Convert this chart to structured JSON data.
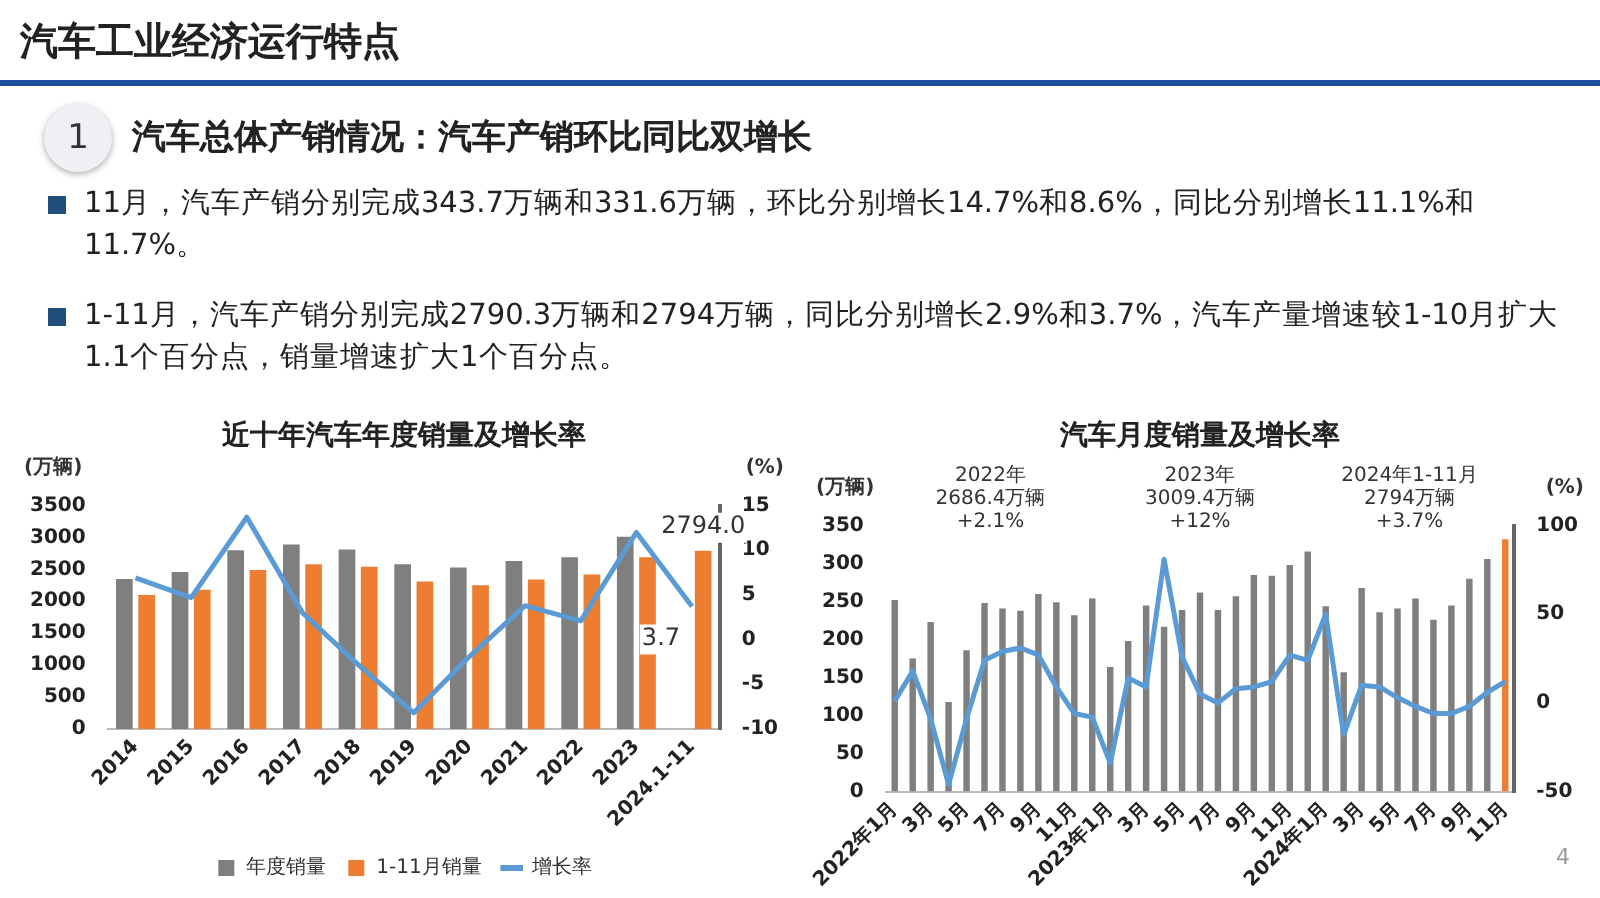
{
  "chart_data": [
    {
      "type": "other",
      "title": "汽车工业经济运行特点",
      "subtitle": "汽车总体产销情况：汽车产销环比同比双增长",
      "annotations": [
        "1",
        "11月，汽车产销分别完成343.7万辆和331.6万辆，环比分别增长14.7%和8.6%，同比分别增长11.1%和11.7%。",
        "1-11月，汽车产销分别完成2790.3万辆和2794万辆，同比分别增长2.9%和3.7%，汽车产量增速较1-10月扩大1.1个百分点，销量增速扩大1个百分点。",
        "4"
      ]
    },
    {
      "type": "bar",
      "title": "近十年汽车年度销量及增长率",
      "ylabel": "(万辆)",
      "y2label": "(%)",
      "categories": [
        "2014",
        "2015",
        "2016",
        "2017",
        "2018",
        "2019",
        "2020",
        "2021",
        "2022",
        "2023",
        "2024.1-11"
      ],
      "series": [
        {
          "name": "年度销量",
          "type": "bar",
          "color": "#7f7f7f",
          "values": [
            2350,
            2460,
            2800,
            2890,
            2810,
            2580,
            2530,
            2630,
            2690,
            3010,
            null
          ]
        },
        {
          "name": "1-11月销量",
          "type": "bar",
          "color": "#ed7d31",
          "values": [
            2100,
            2180,
            2490,
            2580,
            2540,
            2310,
            2250,
            2340,
            2420,
            2690,
            2794
          ],
          "value_labels": [
            null,
            null,
            null,
            null,
            null,
            null,
            null,
            null,
            null,
            null,
            "2794.0"
          ]
        },
        {
          "name": "增长率",
          "type": "line",
          "axis": "y2",
          "color": "#5b9bd5",
          "values": [
            6.9,
            4.7,
            13.7,
            3.0,
            -2.8,
            -8.2,
            -1.9,
            3.8,
            2.1,
            12.0,
            3.7
          ],
          "value_labels": [
            null,
            null,
            null,
            null,
            null,
            null,
            null,
            null,
            null,
            null,
            "3.7"
          ]
        }
      ],
      "ylim": [
        0,
        3500
      ],
      "yticks": [
        0,
        500,
        1000,
        1500,
        2000,
        2500,
        3000,
        3500
      ],
      "y2lim": [
        -10,
        15
      ],
      "y2ticks": [
        -10,
        -5,
        0,
        5,
        10,
        15
      ],
      "legend": "bottom",
      "marker": "none",
      "line_style": "solid"
    },
    {
      "type": "bar",
      "title": "汽车月度销量及增长率",
      "ylabel": "(万辆)",
      "y2label": "(%)",
      "categories": [
        "2022年1月",
        null,
        "3月",
        null,
        "5月",
        null,
        "7月",
        null,
        "9月",
        null,
        "11月",
        null,
        "2023年1月",
        null,
        "3月",
        null,
        "5月",
        null,
        "7月",
        null,
        "9月",
        null,
        "11月",
        null,
        "2024年1月",
        null,
        "3月",
        null,
        "5月",
        null,
        "7月",
        null,
        "9月",
        null,
        "11月"
      ],
      "series": [
        {
          "type": "bar",
          "colors": [
            "#7f7f7f",
            "#7f7f7f",
            "#7f7f7f",
            "#7f7f7f",
            "#7f7f7f",
            "#7f7f7f",
            "#7f7f7f",
            "#7f7f7f",
            "#7f7f7f",
            "#7f7f7f",
            "#7f7f7f",
            "#7f7f7f",
            "#7f7f7f",
            "#7f7f7f",
            "#7f7f7f",
            "#7f7f7f",
            "#7f7f7f",
            "#7f7f7f",
            "#7f7f7f",
            "#7f7f7f",
            "#7f7f7f",
            "#7f7f7f",
            "#7f7f7f",
            "#7f7f7f",
            "#7f7f7f",
            "#7f7f7f",
            "#7f7f7f",
            "#7f7f7f",
            "#7f7f7f",
            "#7f7f7f",
            "#7f7f7f",
            "#7f7f7f",
            "#7f7f7f",
            "#7f7f7f",
            "#ed7d31"
          ],
          "values": [
            252,
            175,
            223,
            118,
            186,
            248,
            241,
            238,
            260,
            249,
            232,
            254,
            164,
            198,
            245,
            217,
            239,
            262,
            239,
            257,
            285,
            284,
            298,
            316,
            244,
            157,
            268,
            236,
            241,
            254,
            226,
            245,
            280,
            306,
            332
          ]
        },
        {
          "type": "line",
          "axis": "y2",
          "color": "#5b9bd5",
          "values": [
            1,
            18,
            -9,
            -46,
            -9,
            24,
            29,
            31,
            27,
            9,
            -6,
            -8,
            -34,
            14,
            9,
            81,
            26,
            5,
            0,
            8,
            9,
            12,
            27,
            24,
            50,
            -18,
            10,
            9,
            3,
            -2,
            -6,
            -6,
            -2,
            6,
            12
          ]
        }
      ],
      "ylim": [
        0,
        350
      ],
      "yticks": [
        0,
        50,
        100,
        150,
        200,
        250,
        300,
        350
      ],
      "y2lim": [
        -50,
        100
      ],
      "y2ticks": [
        -50,
        0,
        50,
        100
      ],
      "annotations": [
        "2022年\n2686.4万辆\n+2.1%",
        "2023年\n3009.4万辆\n+12%",
        "2024年1-11月\n2794万辆\n+3.7%"
      ],
      "marker": "none",
      "line_style": "solid"
    }
  ]
}
